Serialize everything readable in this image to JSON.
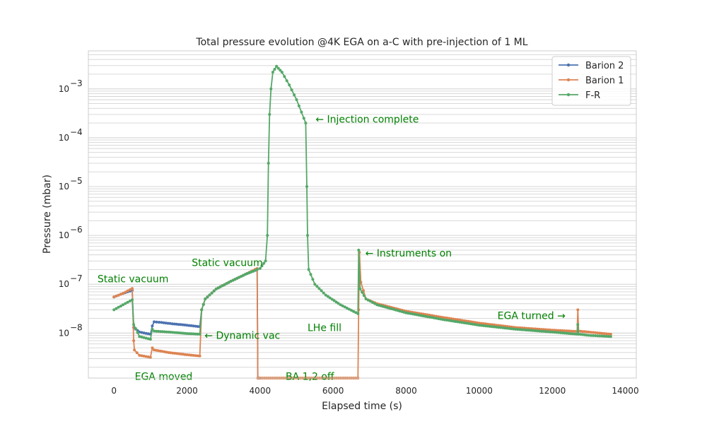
{
  "chart_data": {
    "type": "line",
    "title": "Total pressure evolution @4K EGA on a-C with pre-injection of 1 ML",
    "xlabel": "Elapsed time (s)",
    "ylabel": "Pressure (mbar)",
    "xlim": [
      -700,
      14300
    ],
    "ylim": [
      1.2e-09,
      0.006
    ],
    "yscale": "log",
    "grid": true,
    "legend_position": "top-right",
    "x_ticks": [
      0,
      2000,
      4000,
      6000,
      8000,
      10000,
      12000,
      14000
    ],
    "x_tick_labels": [
      "0",
      "2000",
      "4000",
      "6000",
      "8000",
      "10000",
      "12000",
      "14000"
    ],
    "y_ticks": [
      1e-08,
      1e-07,
      1e-06,
      1e-05,
      0.0001,
      0.001
    ],
    "y_tick_mantissa": [
      "10",
      "10",
      "10",
      "10",
      "10",
      "10"
    ],
    "y_tick_exponent": [
      "−8",
      "−7",
      "−6",
      "−5",
      "−4",
      "−3"
    ],
    "series": [
      {
        "name": "Barion 2",
        "color": "#4c72b0",
        "points": [
          [
            0,
            5.5e-08
          ],
          [
            250,
            6.5e-08
          ],
          [
            500,
            7.5e-08
          ],
          [
            540,
            1.3e-08
          ],
          [
            700,
            1.05e-08
          ],
          [
            1000,
            9.5e-09
          ],
          [
            1050,
            1.4e-08
          ],
          [
            1100,
            1.7e-08
          ],
          [
            1300,
            1.65e-08
          ],
          [
            1600,
            1.55e-08
          ],
          [
            2000,
            1.45e-08
          ],
          [
            2350,
            1.35e-08
          ],
          [
            2400,
            3e-08
          ],
          [
            2500,
            5e-08
          ],
          [
            2800,
            8e-08
          ],
          [
            3200,
            1.15e-07
          ],
          [
            3600,
            1.6e-07
          ],
          [
            3920,
            2e-07
          ],
          [
            3940,
            1.2e-09
          ],
          [
            3960,
            1.2e-09
          ],
          [
            4000,
            1.2e-09
          ]
        ]
      },
      {
        "name": "Barion 1",
        "color": "#dd8452",
        "points": [
          [
            0,
            5.5e-08
          ],
          [
            250,
            6.5e-08
          ],
          [
            500,
            8.2e-08
          ],
          [
            540,
            7e-09
          ],
          [
            560,
            4.5e-09
          ],
          [
            700,
            3.5e-09
          ],
          [
            1000,
            3.2e-09
          ],
          [
            1050,
            5e-09
          ],
          [
            1100,
            4.5e-09
          ],
          [
            1500,
            4e-09
          ],
          [
            2000,
            3.6e-09
          ],
          [
            2350,
            3.4e-09
          ],
          [
            2400,
            3e-08
          ],
          [
            2500,
            5e-08
          ],
          [
            2800,
            8e-08
          ],
          [
            3200,
            1.15e-07
          ],
          [
            3600,
            1.6e-07
          ],
          [
            3920,
            2.1e-07
          ],
          [
            3940,
            1.2e-09
          ],
          [
            6680,
            1.2e-09
          ],
          [
            6700,
            3e-08
          ],
          [
            6720,
            4.5e-07
          ],
          [
            6760,
            1.1e-07
          ],
          [
            6900,
            5e-08
          ],
          [
            7200,
            4e-08
          ],
          [
            8000,
            2.8e-08
          ],
          [
            9000,
            2.1e-08
          ],
          [
            10000,
            1.6e-08
          ],
          [
            11000,
            1.3e-08
          ],
          [
            12000,
            1.15e-08
          ],
          [
            12680,
            1.08e-08
          ],
          [
            12700,
            3e-08
          ],
          [
            12720,
            1.1e-08
          ],
          [
            13000,
            1.05e-08
          ],
          [
            13600,
            9.5e-09
          ]
        ]
      },
      {
        "name": "F-R",
        "color": "#55a868",
        "points": [
          [
            0,
            3e-08
          ],
          [
            250,
            3.8e-08
          ],
          [
            500,
            4.8e-08
          ],
          [
            540,
            1.5e-08
          ],
          [
            700,
            8.5e-09
          ],
          [
            1000,
            7.5e-09
          ],
          [
            1050,
            1.2e-08
          ],
          [
            1100,
            1.1e-08
          ],
          [
            1500,
            1.05e-08
          ],
          [
            2000,
            9.8e-09
          ],
          [
            2350,
            9.5e-09
          ],
          [
            2400,
            3e-08
          ],
          [
            2500,
            5e-08
          ],
          [
            2800,
            8e-08
          ],
          [
            3200,
            1.15e-07
          ],
          [
            3600,
            1.6e-07
          ],
          [
            3920,
            2e-07
          ],
          [
            4000,
            2.1e-07
          ],
          [
            4150,
            3e-07
          ],
          [
            4200,
            1e-06
          ],
          [
            4230,
            3e-05
          ],
          [
            4260,
            0.0003
          ],
          [
            4300,
            0.001
          ],
          [
            4350,
            0.0022
          ],
          [
            4450,
            0.0029
          ],
          [
            4600,
            0.0022
          ],
          [
            4800,
            0.0012
          ],
          [
            5000,
            0.0006
          ],
          [
            5200,
            0.00025
          ],
          [
            5250,
            0.0002
          ],
          [
            5280,
            1e-05
          ],
          [
            5300,
            1e-06
          ],
          [
            5330,
            2e-07
          ],
          [
            5500,
            1e-07
          ],
          [
            5800,
            6e-08
          ],
          [
            6200,
            3.8e-08
          ],
          [
            6680,
            2.5e-08
          ],
          [
            6700,
            5e-07
          ],
          [
            6740,
            8e-08
          ],
          [
            6900,
            5e-08
          ],
          [
            7200,
            3.8e-08
          ],
          [
            8000,
            2.6e-08
          ],
          [
            9000,
            1.9e-08
          ],
          [
            10000,
            1.45e-08
          ],
          [
            11000,
            1.2e-08
          ],
          [
            12000,
            1.05e-08
          ],
          [
            12680,
            9.5e-09
          ],
          [
            12700,
            1.5e-08
          ],
          [
            12720,
            9.5e-09
          ],
          [
            13000,
            9e-09
          ],
          [
            13600,
            8.5e-09
          ]
        ]
      }
    ],
    "annotations": [
      {
        "text": "Static vacuum",
        "x": -450,
        "y": 1.3e-07,
        "align": "start"
      },
      {
        "text": "EGA moved",
        "x": 570,
        "y": 1.3e-09,
        "align": "start"
      },
      {
        "text": "← Dynamic vac",
        "x": 2480,
        "y": 9e-09,
        "align": "start"
      },
      {
        "text": "Static vacuum",
        "x": 2130,
        "y": 2.8e-07,
        "align": "start"
      },
      {
        "text": "BA 1,2 off",
        "x": 4700,
        "y": 1.3e-09,
        "align": "start"
      },
      {
        "text": "← Injection complete",
        "x": 5520,
        "y": 0.00024,
        "align": "start"
      },
      {
        "text": "LHe fill",
        "x": 5300,
        "y": 1.3e-08,
        "align": "start"
      },
      {
        "text": "← Instruments on",
        "x": 6880,
        "y": 4.4e-07,
        "align": "start"
      },
      {
        "text": "EGA turned →",
        "x": 10500,
        "y": 2.3e-08,
        "align": "start"
      }
    ]
  }
}
